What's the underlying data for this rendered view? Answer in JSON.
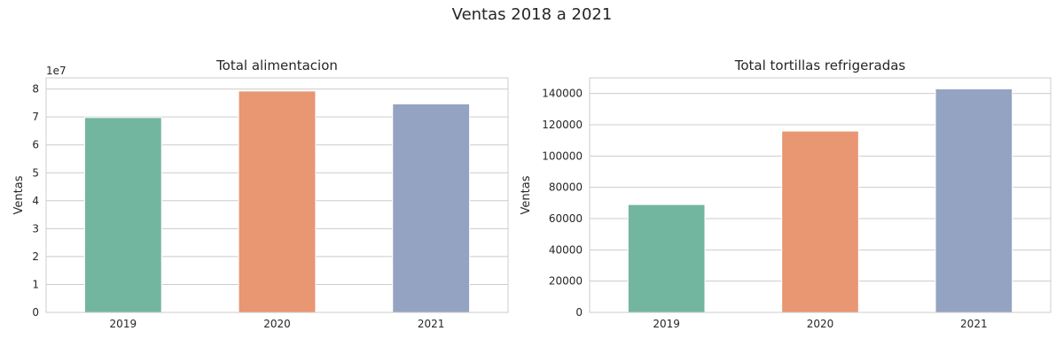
{
  "suptitle": "Ventas 2018 a 2021",
  "chart_data": [
    {
      "type": "bar",
      "title": "Total alimentacion",
      "xlabel": "",
      "ylabel": "Ventas",
      "categories": [
        "2019",
        "2020",
        "2021"
      ],
      "values": [
        69800000,
        79300000,
        74700000
      ],
      "colors": [
        "#73b6a0",
        "#e99673",
        "#94a3c2"
      ],
      "ylim": [
        0,
        84000000
      ],
      "yticks": [
        0,
        10000000,
        20000000,
        30000000,
        40000000,
        50000000,
        60000000,
        70000000,
        80000000
      ],
      "ytick_labels": [
        "0",
        "1",
        "2",
        "3",
        "4",
        "5",
        "6",
        "7",
        "8"
      ],
      "offset_label": "1e7",
      "grid": true
    },
    {
      "type": "bar",
      "title": "Total tortillas refrigeradas",
      "xlabel": "",
      "ylabel": "Ventas",
      "categories": [
        "2019",
        "2020",
        "2021"
      ],
      "values": [
        69000,
        116000,
        143000
      ],
      "colors": [
        "#73b6a0",
        "#e99673",
        "#94a3c2"
      ],
      "ylim": [
        0,
        150000
      ],
      "yticks": [
        0,
        20000,
        40000,
        60000,
        80000,
        100000,
        120000,
        140000
      ],
      "ytick_labels": [
        "0",
        "20000",
        "40000",
        "60000",
        "80000",
        "100000",
        "120000",
        "140000"
      ],
      "offset_label": "",
      "grid": true
    }
  ]
}
